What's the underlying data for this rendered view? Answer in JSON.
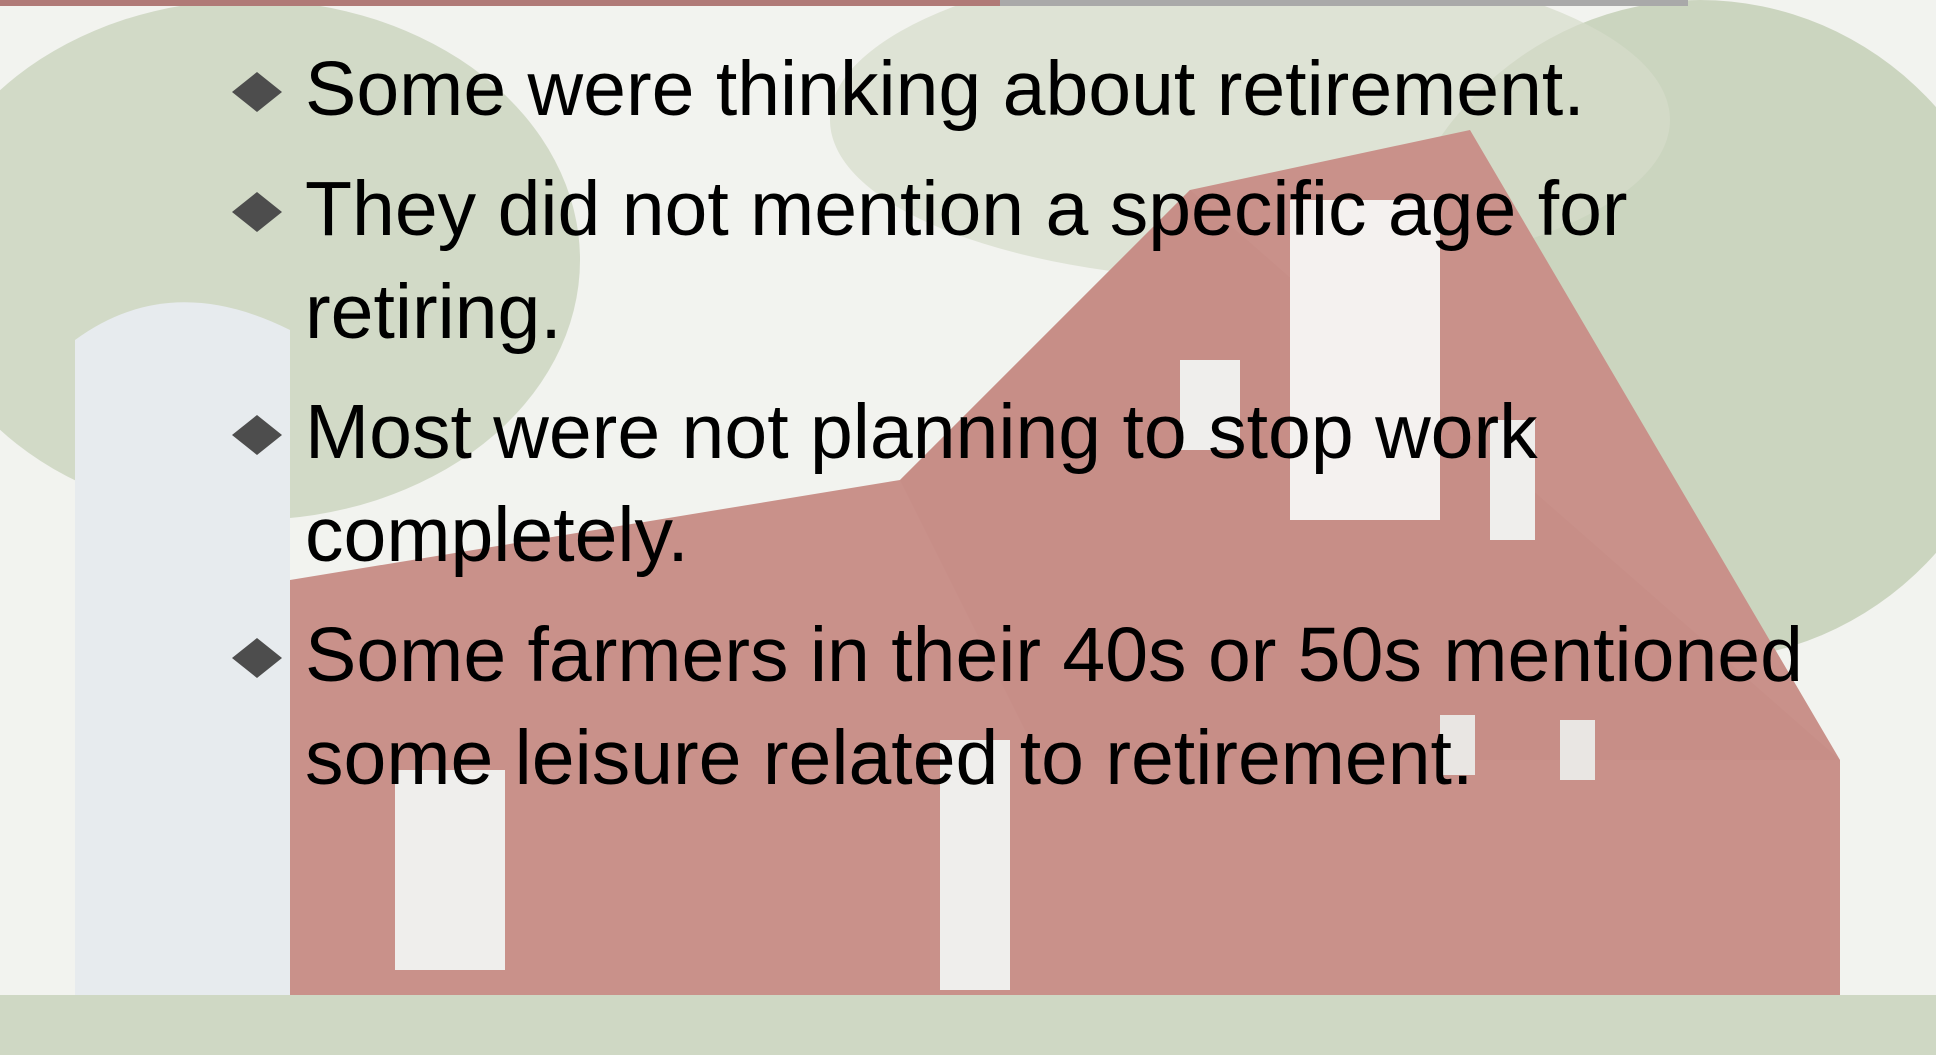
{
  "bullets": [
    "Some were thinking about retirement.",
    "They did not mention a specific age for retiring.",
    "Most were not planning to stop work completely.",
    "Some farmers in their 40s or 50s mentioned some leisure related to retirement."
  ]
}
